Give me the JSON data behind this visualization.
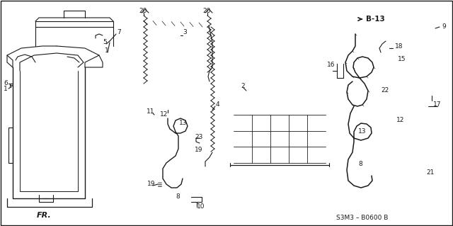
{
  "bg": "#ffffff",
  "line_color": "#1a1a1a",
  "diagram_code": "S3M3 – B0600 B",
  "ref_label": "B-13",
  "fig_width": 6.4,
  "fig_height": 3.19,
  "dpi": 100,
  "lc": "#1a1a1a",
  "lw": 0.8
}
